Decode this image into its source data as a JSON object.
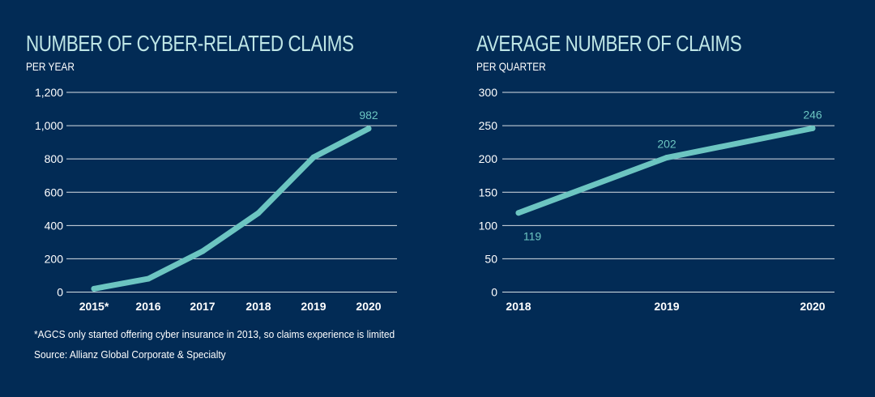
{
  "chart_data": [
    {
      "type": "line",
      "title": "NUMBER OF CYBER-RELATED CLAIMS",
      "subtitle": "PER YEAR",
      "categories": [
        "2015*",
        "2016",
        "2017",
        "2018",
        "2019",
        "2020"
      ],
      "values": [
        20,
        80,
        245,
        475,
        810,
        982
      ],
      "data_labels": [
        {
          "category": "2020",
          "text": "982"
        }
      ],
      "ylim": [
        0,
        1200
      ],
      "yticks": [
        0,
        200,
        400,
        600,
        800,
        1000,
        1200
      ],
      "ytick_labels": [
        "0",
        "200",
        "400",
        "600",
        "800",
        "1,000",
        "1,200"
      ],
      "grid": true,
      "line_color": "#6cc5c1"
    },
    {
      "type": "line",
      "title": "AVERAGE NUMBER OF CLAIMS",
      "subtitle": "PER QUARTER",
      "categories": [
        "2018",
        "2019",
        "2020"
      ],
      "values": [
        119,
        202,
        246
      ],
      "data_labels": [
        {
          "category": "2018",
          "text": "119"
        },
        {
          "category": "2019",
          "text": "202"
        },
        {
          "category": "2020",
          "text": "246"
        }
      ],
      "ylim": [
        0,
        300
      ],
      "yticks": [
        0,
        50,
        100,
        150,
        200,
        250,
        300
      ],
      "ytick_labels": [
        "0",
        "50",
        "100",
        "150",
        "200",
        "250",
        "300"
      ],
      "grid": true,
      "line_color": "#6cc5c1"
    }
  ],
  "footnote": "*AGCS only started offering cyber insurance in 2013, so claims experience is limited",
  "source": "Source: Allianz Global Corporate & Specialty",
  "colors": {
    "background": "#022b55",
    "title": "#bfe6e6",
    "line": "#6cc5c1",
    "grid": "#ffffff"
  }
}
